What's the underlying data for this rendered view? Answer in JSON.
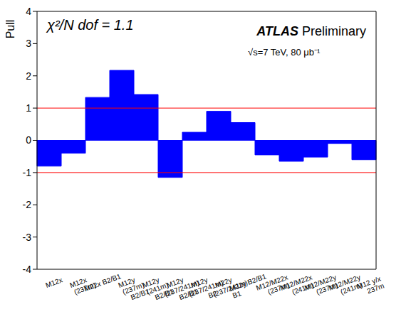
{
  "chart_data": {
    "type": "bar",
    "y_label": "Pull",
    "categories": [
      "M12x",
      "M12x (237m)",
      "M22x B2/B1",
      "M12y (237m) B2/B1",
      "M12y (241m) B2/B1",
      "M12y (237/241m) B2/B1",
      "M12y (237/241m) B2",
      "M22y (237/241m) B1",
      "M22y B2/B1",
      "M12/M22x (237m)",
      "M12/M22x (241m)",
      "M12/M22y (237m)",
      "M12/M22y (241m)",
      "M12 y/x 237m"
    ],
    "values": [
      -0.8,
      -0.4,
      1.33,
      2.17,
      1.42,
      -1.15,
      0.25,
      0.9,
      0.55,
      -0.45,
      -0.65,
      -0.52,
      -0.1,
      -0.6
    ],
    "color": "#0000ff",
    "ylim": [
      -4,
      4
    ],
    "yticks": [
      -4,
      -3,
      -2,
      -1,
      0,
      1,
      2,
      3,
      4
    ],
    "reference_lines": [
      1,
      -1
    ],
    "reference_color": "#ff0000",
    "annotations": [
      "χ²/N dof = 1.1",
      "ATLAS Preliminary",
      "√s=7 TeV, 80 μb⁻¹"
    ]
  }
}
